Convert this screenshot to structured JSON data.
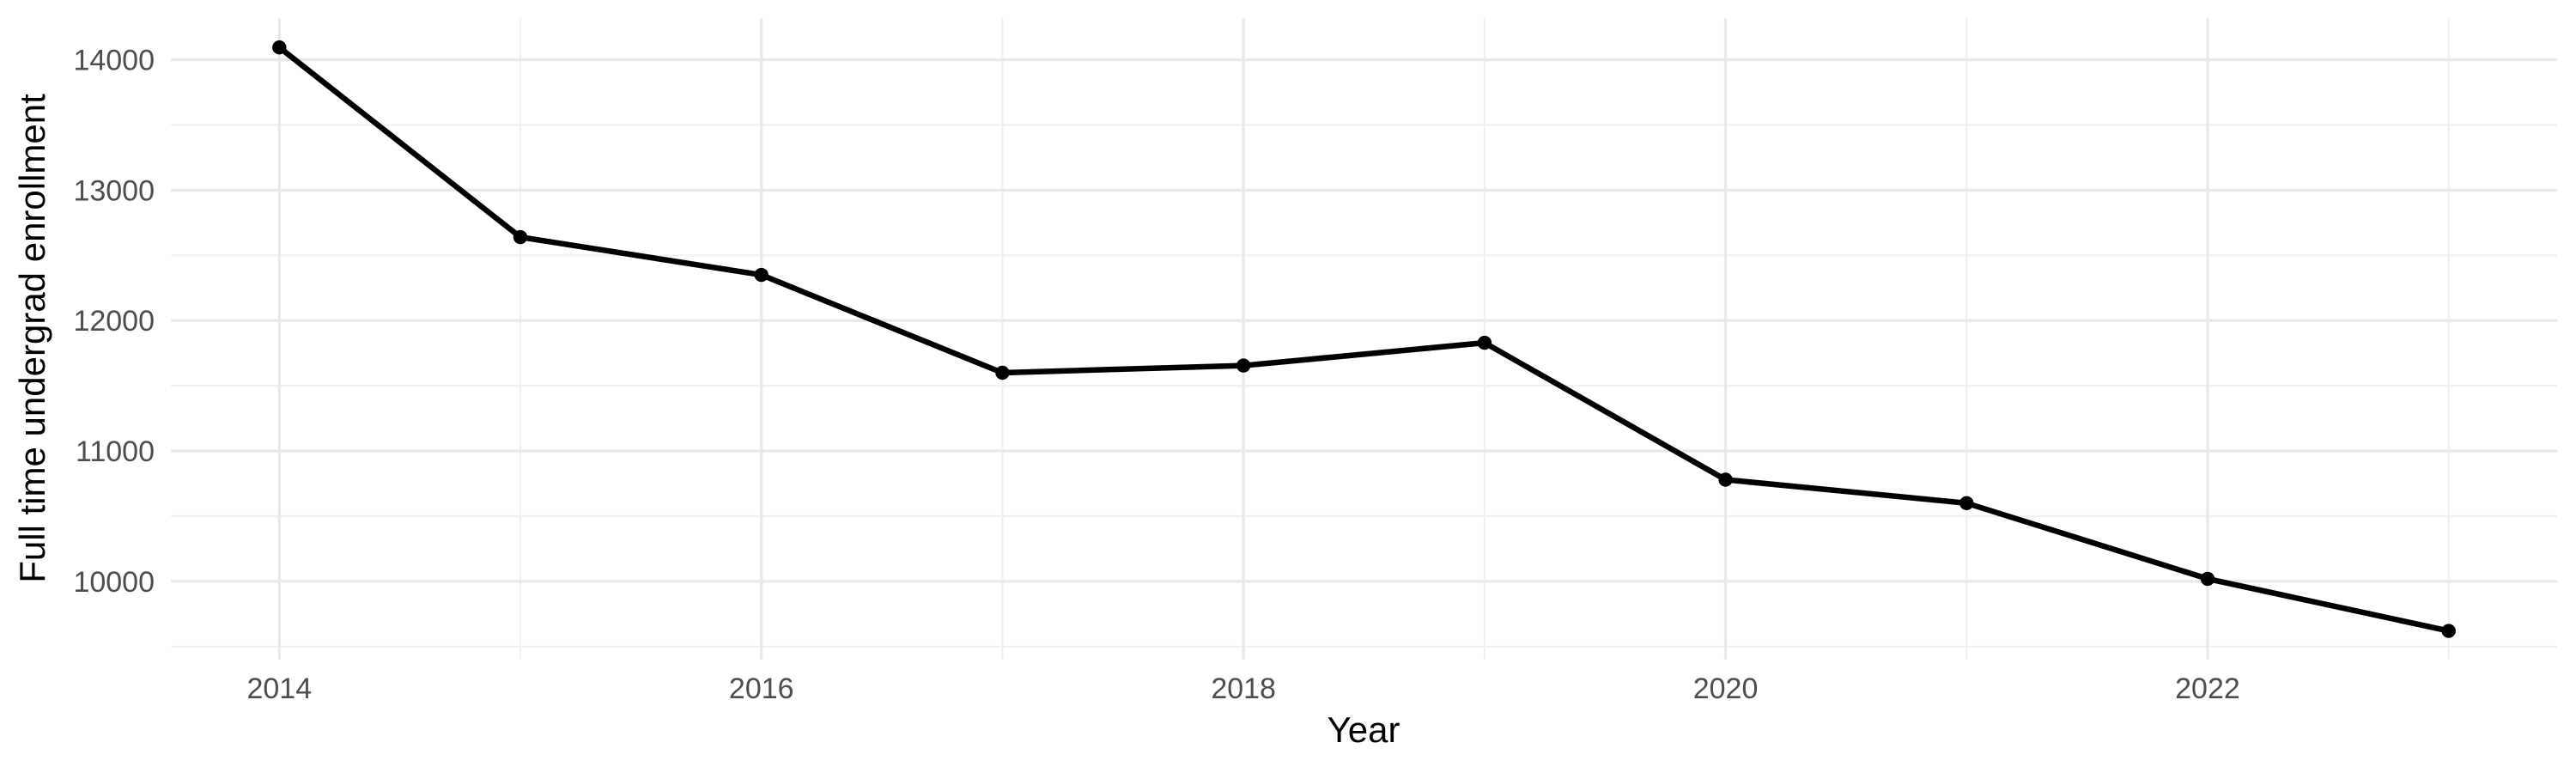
{
  "chart_data": {
    "type": "line",
    "title": "",
    "xlabel": "Year",
    "ylabel": "Full time undergrad enrollment",
    "x": [
      2014,
      2015,
      2016,
      2017,
      2018,
      2019,
      2020,
      2021,
      2022,
      2023
    ],
    "values": [
      14095,
      12640,
      12350,
      11600,
      11655,
      11830,
      10780,
      10600,
      10020,
      9620
    ],
    "xlim": [
      2013.55,
      2023.45
    ],
    "ylim": [
      9400,
      14320
    ],
    "x_major_ticks": [
      2014,
      2016,
      2018,
      2020,
      2022
    ],
    "x_major_tick_labels": [
      "2014",
      "2016",
      "2018",
      "2020",
      "2022"
    ],
    "x_minor_gridlines": [
      2015,
      2017,
      2019,
      2021,
      2023
    ],
    "y_major_ticks": [
      10000,
      11000,
      12000,
      13000,
      14000
    ],
    "y_major_tick_labels": [
      "10000",
      "11000",
      "12000",
      "13000",
      "14000"
    ],
    "y_minor_gridlines": [
      9500,
      10500,
      11500,
      12500,
      13500
    ],
    "grid": "on",
    "legend": "none",
    "marker": "point",
    "colors": {
      "line": "#000000",
      "point": "#000000",
      "tick_label": "#4D4D4D",
      "axis_title": "#000000",
      "grid_major": "#E9E9E9",
      "grid_minor": "#F0F0F0",
      "background": "#FFFFFF"
    }
  }
}
